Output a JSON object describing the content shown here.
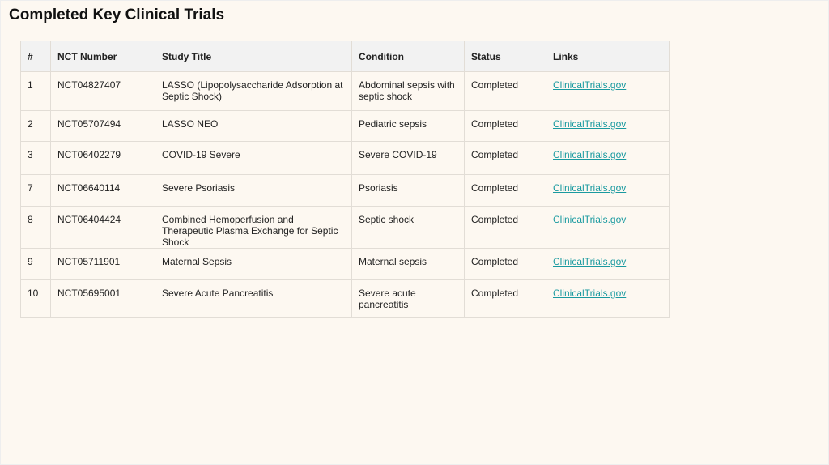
{
  "title": "Completed Key Clinical Trials",
  "colors": {
    "link": "#1a9aa0",
    "header_bg": "#f2f2f2",
    "page_bg": "#fdf8f1"
  },
  "table": {
    "headers": [
      "#",
      "NCT Number",
      "Study Title",
      "Condition",
      "Status",
      "Links"
    ],
    "rows": [
      [
        "1",
        "NCT04827407",
        "LASSO (Lipopolysaccharide Adsorption at Septic Shock)",
        "Abdominal sepsis with septic shock",
        "Completed",
        "ClinicalTrials.gov"
      ],
      [
        "2",
        "NCT05707494",
        "LASSO NEO",
        "Pediatric sepsis",
        "Completed",
        "ClinicalTrials.gov"
      ],
      [
        "3",
        "NCT06402279",
        "COVID-19 Severe",
        "Severe COVID-19",
        "Completed",
        "ClinicalTrials.gov"
      ],
      [
        "7",
        "NCT06640114",
        "Severe Psoriasis",
        "Psoriasis",
        "Completed",
        "ClinicalTrials.gov"
      ],
      [
        "8",
        "NCT06404424",
        "Combined Hemoperfusion and Therapeutic Plasma Exchange for Septic Shock",
        "Septic shock",
        "Completed",
        "ClinicalTrials.gov"
      ],
      [
        "9",
        "NCT05711901",
        "Maternal Sepsis",
        "Maternal sepsis",
        "Completed",
        "ClinicalTrials.gov"
      ],
      [
        "10",
        "NCT05695001",
        "Severe Acute Pancreatitis",
        "Severe acute pancreatitis",
        "Completed",
        "ClinicalTrials.gov"
      ]
    ]
  }
}
